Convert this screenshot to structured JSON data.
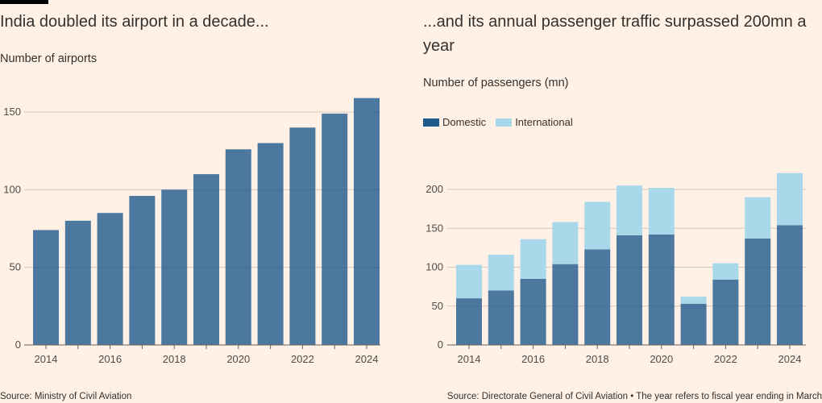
{
  "colors": {
    "background": "#fff1e5",
    "domestic": "#1f5a8f",
    "international": "#a8d8ea",
    "grid": "#d4c8bc"
  },
  "chart_data": [
    {
      "type": "bar",
      "title": "India doubled its airport in a decade...",
      "ylabel": "Number of airports",
      "x": [
        2014,
        2015,
        2016,
        2017,
        2018,
        2019,
        2020,
        2021,
        2022,
        2023,
        2024
      ],
      "values": [
        74,
        80,
        85,
        96,
        100,
        110,
        126,
        130,
        140,
        149,
        159
      ],
      "xticks": [
        "2014",
        "2016",
        "2018",
        "2020",
        "2022",
        "2024"
      ],
      "yticks": [
        "0",
        "50",
        "100",
        "150"
      ],
      "ylim": [
        0,
        170
      ],
      "source": "Source: Ministry of Civil Aviation"
    },
    {
      "type": "bar",
      "stacked": true,
      "title": "...and its annual passenger traffic surpassed 200mn a year",
      "ylabel": "Number of passengers (mn)",
      "x": [
        2014,
        2015,
        2016,
        2017,
        2018,
        2019,
        2020,
        2021,
        2022,
        2023,
        2024
      ],
      "series": [
        {
          "name": "Domestic",
          "values": [
            60,
            70,
            85,
            104,
            123,
            141,
            142,
            53,
            84,
            137,
            154
          ]
        },
        {
          "name": "International",
          "values": [
            43,
            46,
            51,
            54,
            61,
            64,
            60,
            9,
            21,
            53,
            67
          ]
        }
      ],
      "xticks": [
        "2014",
        "2016",
        "2018",
        "2020",
        "2022",
        "2024"
      ],
      "yticks": [
        "0",
        "50",
        "100",
        "150",
        "200"
      ],
      "ylim": [
        0,
        230
      ],
      "legend": "top-left",
      "source": "Source: Directorate General of Civil Aviation • The year refers to fiscal year ending in March"
    }
  ]
}
